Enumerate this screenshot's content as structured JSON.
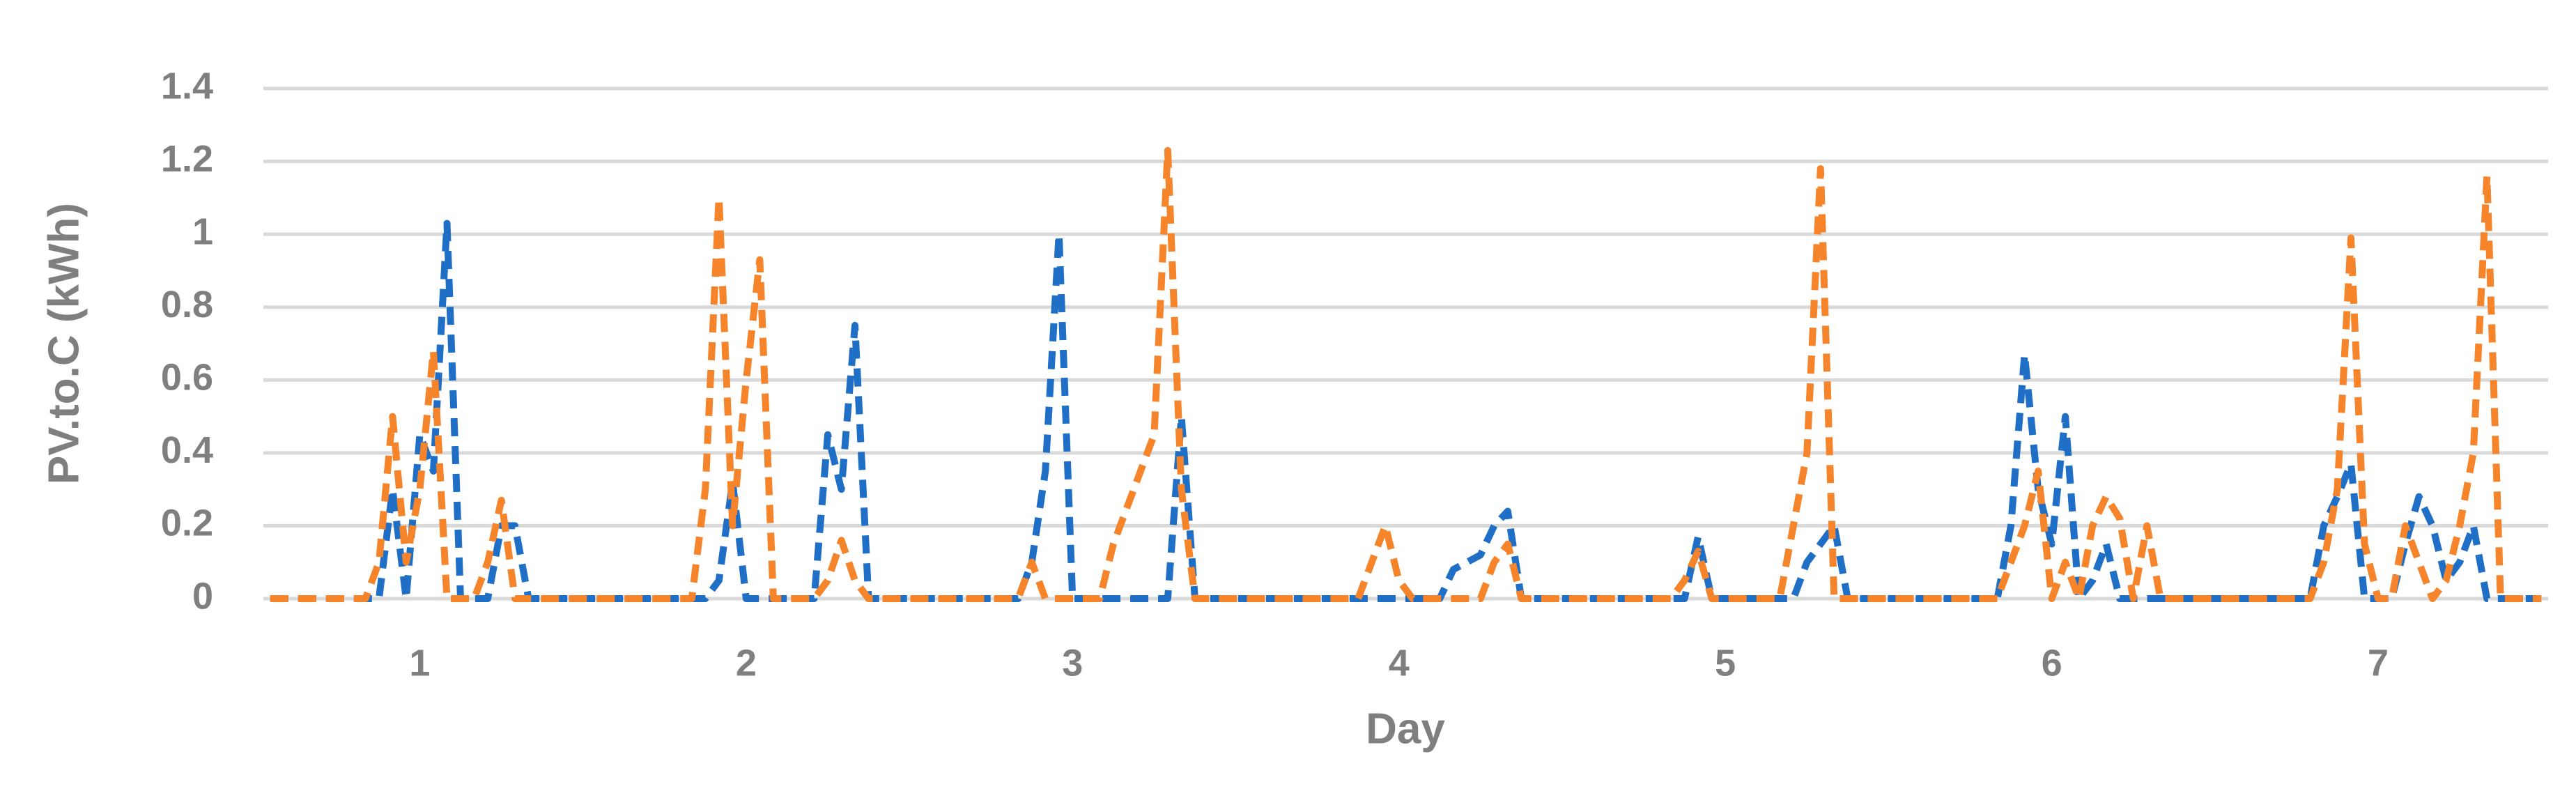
{
  "chart_data": {
    "type": "line",
    "x_label": "Day",
    "y_label": "PV.to.C (kWh)",
    "categories": [
      null,
      null,
      null,
      null,
      null,
      null,
      null,
      null,
      null,
      null,
      null,
      "1",
      null,
      null,
      null,
      null,
      null,
      null,
      null,
      null,
      null,
      null,
      null,
      null,
      null,
      null,
      null,
      null,
      null,
      null,
      null,
      null,
      null,
      null,
      null,
      "2",
      null,
      null,
      null,
      null,
      null,
      null,
      null,
      null,
      null,
      null,
      null,
      null,
      null,
      null,
      null,
      null,
      null,
      null,
      null,
      null,
      null,
      null,
      null,
      "3",
      null,
      null,
      null,
      null,
      null,
      null,
      null,
      null,
      null,
      null,
      null,
      null,
      null,
      null,
      null,
      null,
      null,
      null,
      null,
      null,
      null,
      null,
      null,
      "4",
      null,
      null,
      null,
      null,
      null,
      null,
      null,
      null,
      null,
      null,
      null,
      null,
      null,
      null,
      null,
      null,
      null,
      null,
      null,
      null,
      null,
      null,
      null,
      "5",
      null,
      null,
      null,
      null,
      null,
      null,
      null,
      null,
      null,
      null,
      null,
      null,
      null,
      null,
      null,
      null,
      null,
      null,
      null,
      null,
      null,
      null,
      null,
      "6",
      null,
      null,
      null,
      null,
      null,
      null,
      null,
      null,
      null,
      null,
      null,
      null,
      null,
      null,
      null,
      null,
      null,
      null,
      null,
      null,
      null,
      null,
      null,
      "7",
      null,
      null,
      null,
      null,
      null,
      null,
      null,
      null,
      null,
      null,
      null,
      null
    ],
    "series": [
      {
        "color": "#1f6fc6",
        "values": [
          0,
          0,
          0,
          0,
          0,
          0,
          0,
          0,
          0,
          0.3,
          0,
          0.45,
          0.35,
          1.03,
          0,
          0,
          0,
          0.2,
          0.2,
          0,
          0,
          0,
          0,
          0,
          0,
          0,
          0,
          0,
          0,
          0,
          0,
          0,
          0,
          0.05,
          0.32,
          0,
          0,
          0,
          0,
          0,
          0,
          0.45,
          0.3,
          0.75,
          0,
          0,
          0,
          0,
          0,
          0,
          0,
          0,
          0,
          0,
          0,
          0,
          0.1,
          0.35,
          1.0,
          0,
          0,
          0,
          0,
          0,
          0,
          0,
          0,
          0.5,
          0,
          0,
          0,
          0,
          0,
          0,
          0,
          0,
          0,
          0,
          0,
          0,
          0,
          0,
          0,
          0,
          0,
          0,
          0,
          0.08,
          0.1,
          0.12,
          0.2,
          0.24,
          0,
          0,
          0,
          0,
          0,
          0,
          0,
          0,
          0,
          0,
          0,
          0,
          0,
          0.17,
          0,
          0,
          0,
          0,
          0,
          0,
          0,
          0.1,
          0.15,
          0.2,
          0,
          0,
          0,
          0,
          0,
          0,
          0,
          0,
          0,
          0,
          0,
          0,
          0.2,
          0.67,
          0.3,
          0.15,
          0.5,
          0,
          0.05,
          0.15,
          0,
          0,
          0,
          0,
          0,
          0,
          0,
          0,
          0,
          0,
          0,
          0,
          0,
          0,
          0,
          0.2,
          0.28,
          0.37,
          0,
          0,
          0,
          0.15,
          0.28,
          0.2,
          0.05,
          0.1,
          0.2,
          0,
          0,
          0,
          0,
          0
        ]
      },
      {
        "color": "#f5842a",
        "values": [
          0,
          0,
          0,
          0,
          0,
          0,
          0,
          0,
          0.1,
          0.5,
          0.1,
          0.3,
          0.68,
          0,
          0,
          0,
          0.1,
          0.27,
          0,
          0,
          0,
          0,
          0,
          0,
          0,
          0,
          0,
          0,
          0,
          0,
          0,
          0,
          0.3,
          1.1,
          0.2,
          0.6,
          0.93,
          0,
          0,
          0,
          0,
          0.05,
          0.16,
          0.05,
          0,
          0,
          0,
          0,
          0,
          0,
          0,
          0,
          0,
          0,
          0,
          0,
          0.1,
          0,
          0,
          0,
          0,
          0,
          0.15,
          0.25,
          0.35,
          0.45,
          1.23,
          0.3,
          0,
          0,
          0,
          0,
          0,
          0,
          0,
          0,
          0,
          0,
          0,
          0,
          0,
          0.1,
          0.2,
          0.05,
          0,
          0,
          0,
          0,
          0,
          0,
          0.1,
          0.15,
          0,
          0,
          0,
          0,
          0,
          0,
          0,
          0,
          0,
          0,
          0,
          0,
          0.05,
          0.13,
          0,
          0,
          0,
          0,
          0,
          0,
          0.2,
          0.4,
          1.18,
          0,
          0,
          0,
          0,
          0,
          0,
          0,
          0,
          0,
          0,
          0,
          0,
          0,
          0.1,
          0.2,
          0.35,
          0,
          0.1,
          0,
          0.2,
          0.28,
          0.22,
          0,
          0.2,
          0,
          0,
          0,
          0,
          0,
          0,
          0,
          0,
          0,
          0,
          0,
          0,
          0.1,
          0.3,
          0.99,
          0.15,
          0,
          0,
          0.2,
          0.1,
          0,
          0.05,
          0.2,
          0.4,
          1.16,
          0,
          0,
          0,
          0
        ]
      }
    ],
    "ylim": [
      0,
      1.4
    ],
    "yticks": [
      0,
      0.2,
      0.4,
      0.6,
      0.8,
      1,
      1.2,
      1.4
    ],
    "grid": true,
    "dashed": true
  }
}
